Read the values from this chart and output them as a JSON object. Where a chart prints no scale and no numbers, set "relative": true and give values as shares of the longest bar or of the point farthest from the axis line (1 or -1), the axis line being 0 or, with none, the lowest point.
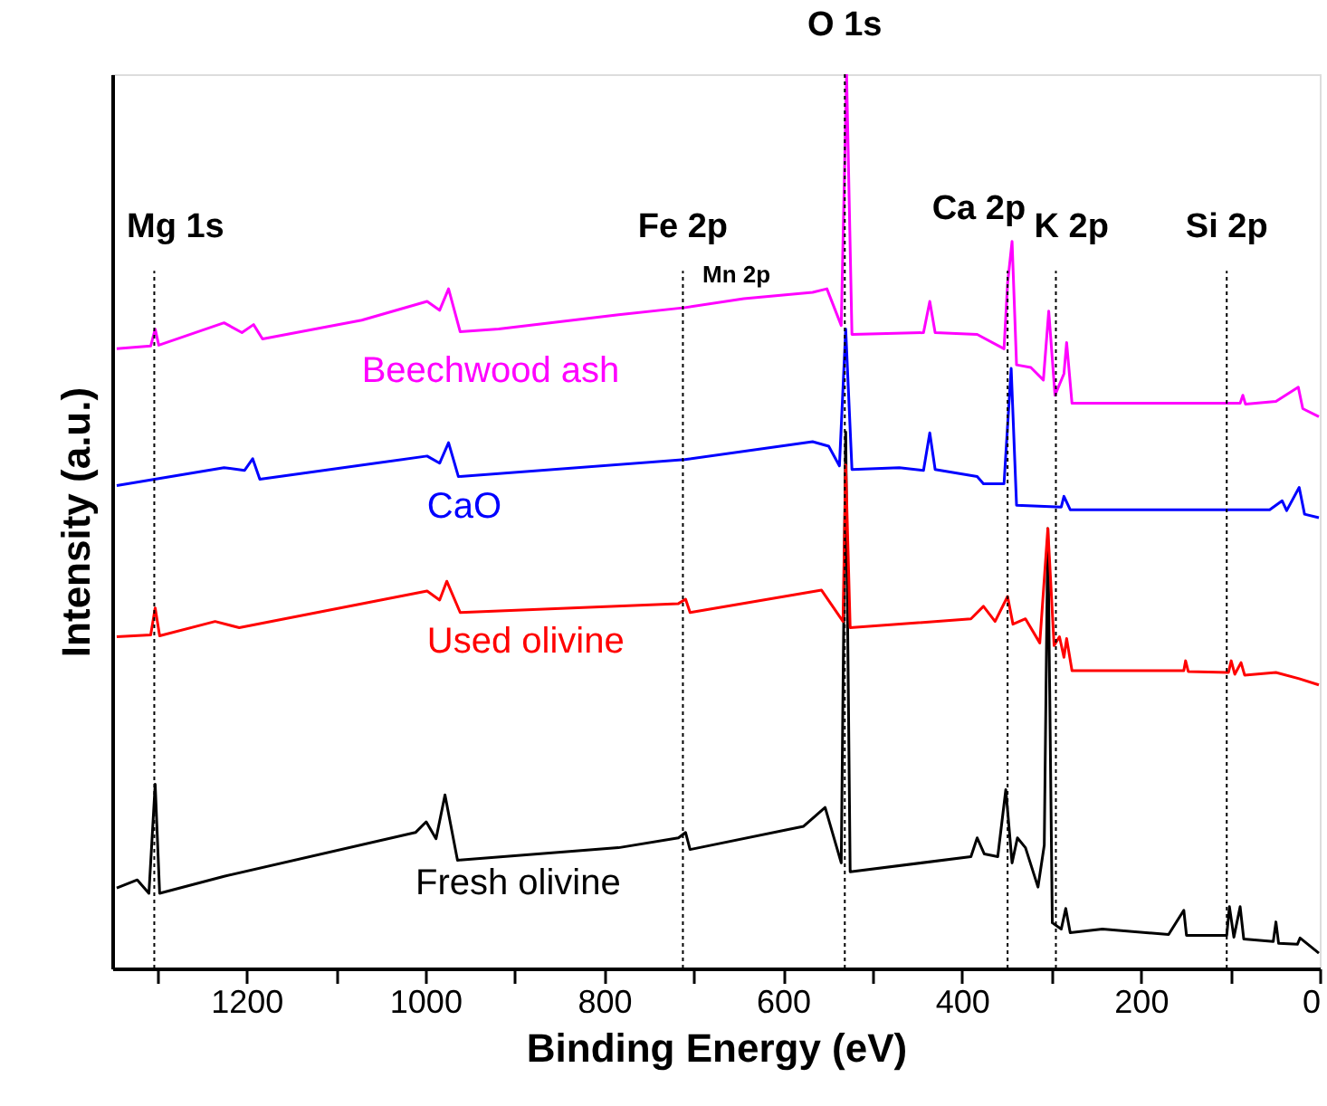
{
  "chart_data": {
    "type": "line",
    "relative": true,
    "xlabel": "Binding Energy (eV)",
    "ylabel": "Intensity (a.u.)",
    "xlim": [
      1350,
      0
    ],
    "xticks": [
      {
        "value": 1300,
        "label": null
      },
      1200,
      {
        "value": 1100,
        "label": null
      },
      1000,
      {
        "value": 900,
        "label": null
      },
      800,
      {
        "value": 700,
        "label": null
      },
      600,
      {
        "value": 500,
        "label": null
      },
      400,
      {
        "value": 300,
        "label": null
      },
      200,
      {
        "value": 100,
        "label": null
      },
      0
    ],
    "legend": false,
    "grid": false,
    "marker": "none",
    "line_style": "solid",
    "series": [
      {
        "name": "Beechwood ash",
        "color": "#ff00ff",
        "x": [
          1345,
          1307,
          1302,
          1298,
          1225,
          1205,
          1192,
          1182,
          1071,
          998,
          984,
          974,
          961,
          918,
          784,
          710,
          644,
          567,
          551,
          535,
          529,
          523,
          443,
          436,
          430,
          383,
          353,
          349,
          344,
          339,
          323,
          309,
          303,
          296,
          286,
          283,
          277,
          89,
          86,
          83,
          49,
          24,
          19,
          1
        ],
        "values": [
          0.693,
          0.696,
          0.715,
          0.697,
          0.722,
          0.711,
          0.72,
          0.704,
          0.725,
          0.746,
          0.736,
          0.76,
          0.712,
          0.715,
          0.731,
          0.739,
          0.749,
          0.756,
          0.76,
          0.719,
          1.0,
          0.709,
          0.711,
          0.746,
          0.711,
          0.709,
          0.693,
          0.766,
          0.813,
          0.675,
          0.672,
          0.658,
          0.735,
          0.641,
          0.665,
          0.7,
          0.632,
          0.632,
          0.641,
          0.631,
          0.634,
          0.65,
          0.626,
          0.617
        ]
      },
      {
        "name": "CaO",
        "color": "#0000ff",
        "x": [
          1345,
          1225,
          1202,
          1193,
          1185,
          998,
          984,
          974,
          963,
          710,
          567,
          549,
          537,
          530,
          523,
          470,
          443,
          436,
          430,
          383,
          376,
          353,
          349,
          345,
          339,
          289,
          286,
          279,
          56,
          42,
          37,
          23,
          17,
          1
        ],
        "values": [
          0.54,
          0.56,
          0.557,
          0.57,
          0.547,
          0.573,
          0.565,
          0.588,
          0.55,
          0.569,
          0.589,
          0.584,
          0.562,
          0.715,
          0.558,
          0.56,
          0.557,
          0.599,
          0.558,
          0.55,
          0.542,
          0.542,
          0.607,
          0.671,
          0.518,
          0.516,
          0.528,
          0.513,
          0.513,
          0.523,
          0.512,
          0.538,
          0.508,
          0.504
        ]
      },
      {
        "name": "Used olivine",
        "color": "#ff0000",
        "x": [
          1345,
          1307,
          1302,
          1297,
          1235,
          1208,
          998,
          984,
          976,
          961,
          717,
          709,
          704,
          557,
          533,
          530,
          525,
          390,
          376,
          363,
          349,
          343,
          329,
          313,
          304,
          297,
          291,
          286,
          283,
          277,
          152,
          150,
          147,
          102,
          99,
          95,
          88,
          84,
          49,
          23,
          1
        ],
        "values": [
          0.371,
          0.373,
          0.403,
          0.372,
          0.388,
          0.381,
          0.422,
          0.412,
          0.433,
          0.398,
          0.408,
          0.413,
          0.398,
          0.423,
          0.388,
          0.563,
          0.381,
          0.391,
          0.405,
          0.388,
          0.416,
          0.385,
          0.391,
          0.364,
          0.492,
          0.361,
          0.371,
          0.348,
          0.369,
          0.333,
          0.333,
          0.344,
          0.332,
          0.331,
          0.344,
          0.329,
          0.342,
          0.328,
          0.331,
          0.324,
          0.317
        ]
      },
      {
        "name": "Fresh olivine",
        "color": "#000000",
        "x": [
          1345,
          1322,
          1309,
          1302,
          1297,
          1225,
          1011,
          999,
          988,
          978,
          964,
          784,
          717,
          709,
          704,
          577,
          553,
          535,
          530,
          525,
          390,
          383,
          375,
          360,
          351,
          344,
          338,
          329,
          315,
          308,
          304,
          299,
          289,
          284,
          279,
          243,
          169,
          152,
          149,
          104,
          101,
          96,
          89,
          85,
          52,
          49,
          46,
          25,
          22,
          1
        ],
        "values": [
          0.09,
          0.099,
          0.084,
          0.206,
          0.084,
          0.103,
          0.152,
          0.164,
          0.145,
          0.194,
          0.121,
          0.135,
          0.146,
          0.152,
          0.133,
          0.159,
          0.18,
          0.118,
          0.6,
          0.108,
          0.125,
          0.146,
          0.128,
          0.125,
          0.2,
          0.118,
          0.146,
          0.135,
          0.091,
          0.138,
          0.492,
          0.051,
          0.044,
          0.067,
          0.04,
          0.044,
          0.038,
          0.065,
          0.037,
          0.037,
          0.069,
          0.035,
          0.069,
          0.033,
          0.03,
          0.052,
          0.028,
          0.027,
          0.034,
          0.017
        ]
      }
    ],
    "ref_lines": [
      {
        "axis": "x",
        "value": 1303,
        "label": "Mg 1s",
        "color": "#000000",
        "line_style": "dotted"
      },
      {
        "axis": "x",
        "value": 712,
        "label": "Fe 2p",
        "color": "#000000",
        "line_style": "dotted"
      },
      {
        "axis": "x",
        "value": 531,
        "label": "O 1s",
        "color": "#000000",
        "line_style": "dotted"
      },
      {
        "axis": "x",
        "value": 349,
        "label": "Ca 2p",
        "color": "#000000",
        "line_style": "dotted"
      },
      {
        "axis": "x",
        "value": 295,
        "label": "K 2p",
        "color": "#000000",
        "line_style": "dotted"
      },
      {
        "axis": "x",
        "value": 104,
        "label": "Si 2p",
        "color": "#000000",
        "line_style": "dotted"
      }
    ],
    "annotations": [
      "Mn 2p"
    ]
  }
}
